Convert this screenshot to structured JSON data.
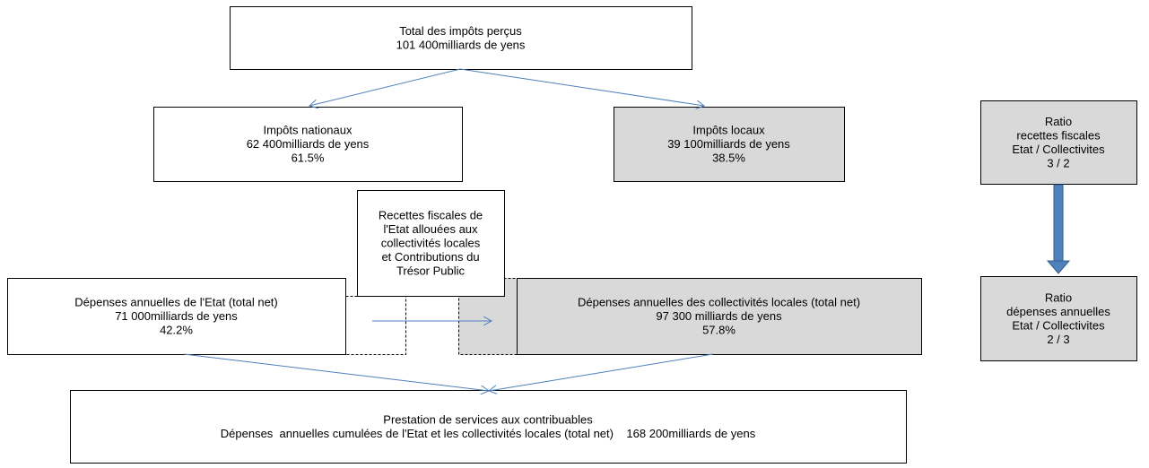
{
  "nodes": [
    {
      "lines": [
        "Total des impôts perçus",
        "101 400milliards de yens"
      ]
    },
    {
      "lines": [
        "Impôts nationaux",
        "62 400milliards de yens",
        "61.5%"
      ]
    },
    {
      "lines": [
        "Impôts locaux",
        "39 100milliards de yens",
        "38.5%"
      ]
    },
    {
      "lines": [
        "Ratio",
        "recettes fiscales",
        "Etat / Collectivites",
        "3 / 2"
      ]
    },
    {
      "lines": [
        "Recettes fiscales de",
        "l'Etat allouées aux",
        "collectivités locales",
        "et Contributions du",
        "Trésor Public"
      ]
    },
    {
      "lines": [
        "Dépenses annuelles de l'Etat (total net)",
        "71 000milliards de yens",
        "42.2%"
      ]
    },
    {
      "lines": [
        "Dépenses annuelles des collectivités locales (total net)",
        "97 300 milliards de yens",
        "57.8%"
      ]
    },
    {
      "lines": [
        "Ratio",
        "dépenses annuelles",
        "Etat / Collectivites",
        "2 / 3"
      ]
    },
    {
      "lines": [
        "Prestation de services aux contribuables",
        "Dépenses  annuelles cumulées de l'Etat et les collectivités locales (total net)    168 200milliards de yens"
      ]
    }
  ]
}
